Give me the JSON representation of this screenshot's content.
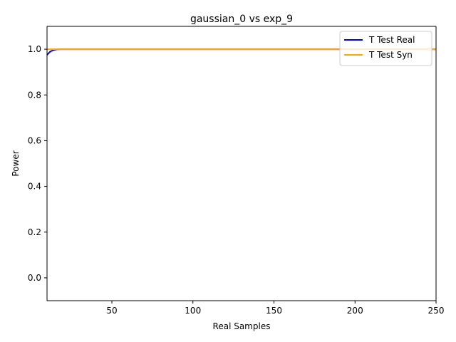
{
  "chart_data": {
    "type": "line",
    "title": "gaussian_0 vs exp_9",
    "xlabel": "Real Samples",
    "ylabel": "Power",
    "xlim": [
      10,
      250
    ],
    "ylim": [
      -0.1,
      1.1
    ],
    "xticks": [
      50,
      100,
      150,
      200,
      250
    ],
    "yticks": [
      0.0,
      0.2,
      0.4,
      0.6,
      0.8,
      1.0
    ],
    "grid": false,
    "legend_position": "top-right",
    "series": [
      {
        "name": "T Test Real",
        "color": "#0000cc",
        "x": [
          10,
          12,
          14,
          16,
          18,
          20,
          25,
          30,
          50,
          100,
          150,
          200,
          250
        ],
        "y": [
          0.975,
          0.99,
          0.996,
          0.999,
          1.0,
          1.0,
          1.0,
          1.0,
          1.0,
          1.0,
          1.0,
          1.0,
          1.0
        ]
      },
      {
        "name": "T Test Syn",
        "color": "#ffa500",
        "x": [
          10,
          50,
          100,
          150,
          200,
          250
        ],
        "y": [
          1.0,
          1.0,
          1.0,
          1.0,
          1.0,
          1.0
        ]
      }
    ]
  }
}
